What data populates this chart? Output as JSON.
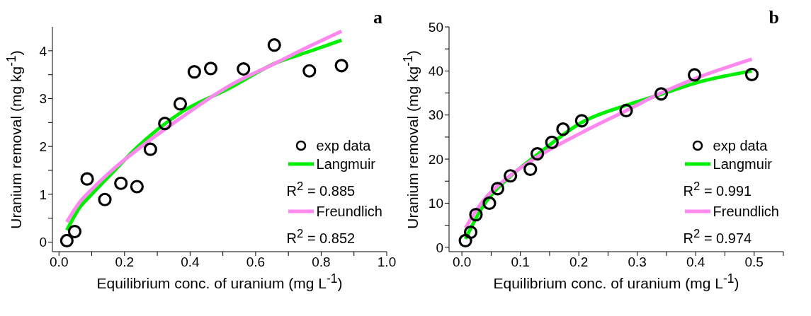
{
  "chart_data": [
    {
      "type": "scatter",
      "title": "a",
      "xlabel": "Equilibrium conc. of uranium (mg L$^{-1}$)",
      "ylabel": "Uranium removal (mg kg$^{-1}$)",
      "xlim": [
        -0.02,
        1.0
      ],
      "ylim": [
        -0.2,
        4.5
      ],
      "xticks": [
        {
          "value": 0,
          "label": "0.0"
        },
        {
          "value": 0.1,
          "label": null
        },
        0.2,
        {
          "value": 0.3,
          "label": null
        },
        0.4,
        {
          "value": 0.5,
          "label": null
        },
        0.6,
        {
          "value": 0.7,
          "label": null
        },
        0.8,
        {
          "value": 0.9,
          "label": null
        },
        {
          "value": 1.0,
          "label": "1.0"
        }
      ],
      "yticks": [
        0,
        {
          "value": 0.5,
          "label": null
        },
        1,
        {
          "value": 1.5,
          "label": null
        },
        2,
        {
          "value": 2.5,
          "label": null
        },
        3,
        {
          "value": 3.5,
          "label": null
        },
        4
      ],
      "legend": "bottom right",
      "series": [
        {
          "name": "exp data",
          "marker": "circle",
          "color": "#000000",
          "x": [
            0.024,
            0.048,
            0.086,
            0.14,
            0.189,
            0.238,
            0.279,
            0.323,
            0.37,
            0.413,
            0.463,
            0.563,
            0.657,
            0.764,
            0.862
          ],
          "values": [
            0.03,
            0.22,
            1.32,
            0.89,
            1.23,
            1.16,
            1.94,
            2.48,
            2.89,
            3.56,
            3.63,
            3.62,
            4.12,
            3.58,
            3.69
          ]
        },
        {
          "name": "Langmuir",
          "type": "line",
          "color": "#00ee00",
          "x": [
            0.024,
            0.064,
            0.1,
            0.17,
            0.235,
            0.377,
            0.518,
            0.66,
            0.766,
            0.862
          ],
          "values": [
            0.25,
            0.73,
            1.0,
            1.5,
            1.96,
            2.73,
            3.21,
            3.74,
            3.99,
            4.22
          ]
        },
        {
          "name": "Freundlich",
          "type": "line",
          "color": "#ff88ee",
          "x": [
            0.024,
            0.064,
            0.1,
            0.17,
            0.235,
            0.377,
            0.518,
            0.66,
            0.766,
            0.862
          ],
          "values": [
            0.42,
            0.84,
            1.1,
            1.55,
            1.91,
            2.62,
            3.26,
            3.74,
            4.1,
            4.41
          ]
        }
      ],
      "annotations": [
        "R$^{2}$ = 0.885",
        "R$^{2}$ = 0.852"
      ]
    },
    {
      "type": "scatter",
      "title": "b",
      "xlabel": "Equilibrium conc. of uranium (mg L$^{-1}$)",
      "ylabel": "Uranium removal (mg kg$^{-1}$)",
      "xlim": [
        -0.022,
        0.55
      ],
      "ylim": [
        -1,
        50
      ],
      "xticks": [
        {
          "value": 0,
          "label": "0.0"
        },
        {
          "value": 0.05,
          "label": null
        },
        0.1,
        {
          "value": 0.15,
          "label": null
        },
        0.2,
        {
          "value": 0.25,
          "label": null
        },
        0.3,
        {
          "value": 0.35,
          "label": null
        },
        0.4,
        {
          "value": 0.45,
          "label": null
        },
        0.5,
        {
          "value": 0.55,
          "label": null
        }
      ],
      "yticks": [
        0,
        {
          "value": 5,
          "label": null
        },
        10,
        {
          "value": 15,
          "label": null
        },
        20,
        {
          "value": 25,
          "label": null
        },
        30,
        {
          "value": 35,
          "label": null
        },
        40,
        {
          "value": 45,
          "label": null
        },
        50
      ],
      "legend": "bottom right",
      "series": [
        {
          "name": "exp data",
          "marker": "circle",
          "color": "#000000",
          "x": [
            0.006,
            0.015,
            0.024,
            0.047,
            0.061,
            0.083,
            0.117,
            0.129,
            0.154,
            0.173,
            0.205,
            0.281,
            0.341,
            0.398,
            0.496
          ],
          "values": [
            1.5,
            3.4,
            7.4,
            10.0,
            13.3,
            16.2,
            17.7,
            21.2,
            23.8,
            26.8,
            28.7,
            31.0,
            34.8,
            39.1,
            39.2
          ]
        },
        {
          "name": "Langmuir",
          "type": "line",
          "color": "#00ee00",
          "x": [
            0.006,
            0.035,
            0.083,
            0.129,
            0.205,
            0.281,
            0.341,
            0.398,
            0.496
          ],
          "values": [
            1.9,
            9.1,
            16.1,
            21.0,
            28.3,
            32.2,
            34.7,
            37.2,
            40.0
          ]
        },
        {
          "name": "Freundlich",
          "type": "line",
          "color": "#ff88ee",
          "x": [
            0.006,
            0.035,
            0.083,
            0.129,
            0.205,
            0.281,
            0.341,
            0.398,
            0.496
          ],
          "values": [
            4.4,
            10.3,
            16.3,
            20.5,
            26.0,
            31.0,
            35.0,
            38.2,
            42.7
          ]
        }
      ],
      "annotations": [
        "R$^{2}$ = 0.991",
        "R$^{2}$ = 0.974"
      ]
    }
  ]
}
